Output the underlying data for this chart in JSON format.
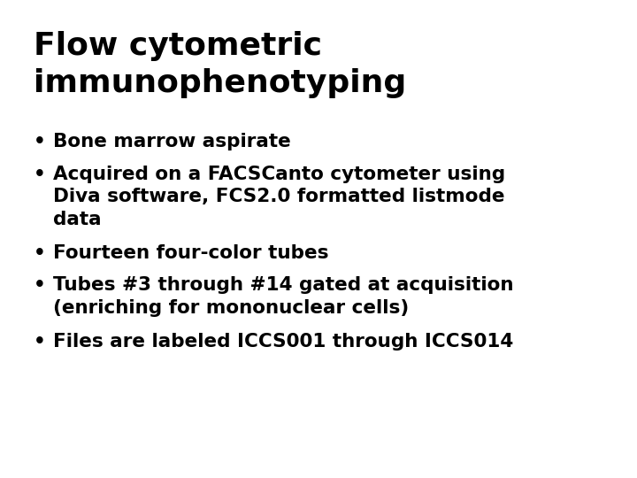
{
  "title_line1": "Flow cytometric",
  "title_line2": "immunophenotyping",
  "bullets": [
    {
      "text": "Bone marrow aspirate",
      "lines": 1
    },
    {
      "text": "Acquired on a FACSCanto cytometer using\nDiva software, FCS2.0 formatted listmode\ndata",
      "lines": 3
    },
    {
      "text": "Fourteen four‑color tubes",
      "lines": 1
    },
    {
      "text": "Tubes #3 through #14 gated at acquisition\n(enriching for mononuclear cells)",
      "lines": 2
    },
    {
      "text": "Files are labeled ICCS001 through ICCS014",
      "lines": 1
    }
  ],
  "background_color": "#ffffff",
  "text_color": "#000000",
  "title_fontsize": 26,
  "bullet_fontsize": 15.5,
  "font_weight": "bold"
}
